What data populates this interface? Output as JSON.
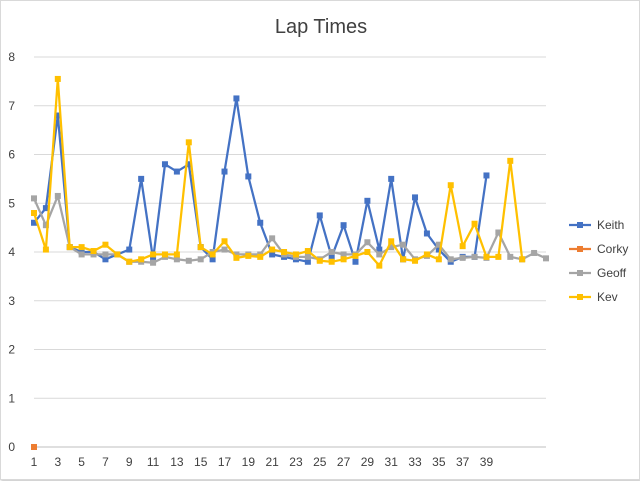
{
  "chart_data": {
    "type": "line",
    "title": "Lap Times",
    "xlabel": "",
    "ylabel": "",
    "ylim": [
      0,
      8
    ],
    "yticks": [
      0,
      1,
      2,
      3,
      4,
      5,
      6,
      7,
      8
    ],
    "xlim": [
      1,
      44
    ],
    "xticks": [
      1,
      3,
      5,
      7,
      9,
      11,
      13,
      15,
      17,
      19,
      21,
      23,
      25,
      27,
      29,
      31,
      33,
      35,
      37,
      39
    ],
    "grid": "horizontal",
    "legend": "right",
    "x": [
      1,
      2,
      3,
      4,
      5,
      6,
      7,
      8,
      9,
      10,
      11,
      12,
      13,
      14,
      15,
      16,
      17,
      18,
      19,
      20,
      21,
      22,
      23,
      24,
      25,
      26,
      27,
      28,
      29,
      30,
      31,
      32,
      33,
      34,
      35,
      36,
      37,
      38,
      39,
      40,
      41,
      42,
      43,
      44
    ],
    "series": [
      {
        "name": "Keith",
        "color": "#4472C4",
        "values": [
          4.6,
          4.9,
          6.8,
          4.1,
          4.0,
          4.0,
          3.85,
          3.95,
          4.05,
          5.5,
          3.85,
          5.8,
          5.65,
          5.8,
          4.1,
          3.85,
          5.65,
          7.15,
          5.55,
          4.6,
          3.95,
          3.9,
          3.85,
          3.8,
          4.75,
          3.9,
          4.55,
          3.8,
          5.05,
          4.05,
          5.5,
          3.85,
          5.12,
          4.38,
          4.05,
          3.8,
          3.9,
          3.9,
          5.57,
          null,
          null,
          null,
          null,
          null
        ]
      },
      {
        "name": "Corky",
        "color": "#ED7D31",
        "values": [
          0,
          null,
          null,
          null,
          null,
          null,
          null,
          null,
          null,
          null,
          null,
          null,
          null,
          null,
          null,
          null,
          null,
          null,
          null,
          null,
          null,
          null,
          null,
          null,
          null,
          null,
          null,
          null,
          null,
          null,
          null,
          null,
          null,
          null,
          null,
          null,
          null,
          null,
          null,
          null,
          null,
          null,
          null,
          null
        ]
      },
      {
        "name": "Geoff",
        "color": "#A5A5A5",
        "values": [
          5.1,
          4.55,
          5.15,
          4.1,
          3.95,
          3.95,
          3.95,
          3.95,
          3.8,
          3.8,
          3.78,
          3.9,
          3.85,
          3.82,
          3.85,
          4.0,
          4.05,
          3.95,
          3.95,
          3.95,
          4.28,
          3.95,
          3.9,
          3.9,
          3.85,
          4.0,
          3.95,
          3.95,
          4.2,
          3.95,
          4.1,
          4.15,
          3.85,
          3.92,
          4.15,
          3.85,
          3.88,
          3.9,
          3.88,
          4.4,
          3.9,
          3.85,
          3.98,
          3.87
        ]
      },
      {
        "name": "Kev",
        "color": "#FFC000",
        "values": [
          4.8,
          4.05,
          7.55,
          4.1,
          4.1,
          4.02,
          4.15,
          3.95,
          3.8,
          3.85,
          3.95,
          3.95,
          3.95,
          6.25,
          4.1,
          3.95,
          4.22,
          3.88,
          3.92,
          3.9,
          4.05,
          4.0,
          3.95,
          4.02,
          3.82,
          3.8,
          3.85,
          3.92,
          4.0,
          3.72,
          4.22,
          3.85,
          3.82,
          3.95,
          3.85,
          5.37,
          4.12,
          4.58,
          3.9,
          3.9,
          5.87,
          3.85,
          null,
          null
        ]
      }
    ]
  }
}
